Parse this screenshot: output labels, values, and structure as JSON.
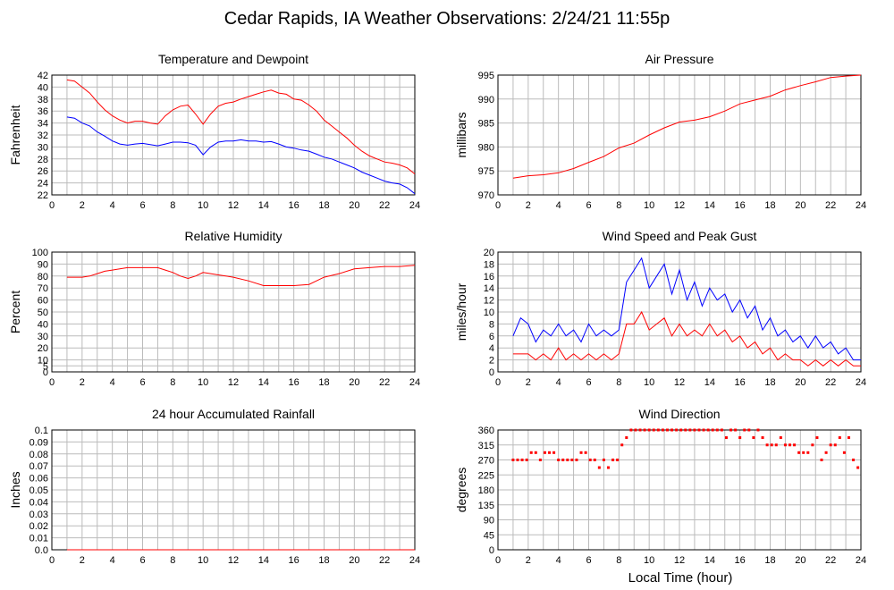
{
  "page_title": "Cedar Rapids, IA Weather Observations: 2/24/21 11:55p",
  "xaxis_label": "Local Time (hour)",
  "x_ticks": [
    "0",
    "2",
    "4",
    "6",
    "8",
    "10",
    "12",
    "14",
    "16",
    "18",
    "20",
    "22",
    "24"
  ],
  "colors": {
    "red": "#ff0000",
    "blue": "#0000ff",
    "grid": "#bbbbbb",
    "frame": "#000000"
  },
  "chart_data": [
    {
      "id": "temp",
      "type": "line",
      "title": "Temperature and Dewpoint",
      "xlabel": "",
      "ylabel": "Fahrenheit",
      "xlim": [
        0,
        24
      ],
      "ylim": [
        22,
        42
      ],
      "yticks": [
        "22",
        "24",
        "26",
        "28",
        "30",
        "32",
        "34",
        "36",
        "38",
        "40",
        "42"
      ],
      "grid": true,
      "series": [
        {
          "color": "#ff0000",
          "x": [
            1.0,
            1.5,
            2.0,
            2.5,
            3.0,
            3.5,
            4.0,
            4.5,
            5.0,
            5.5,
            6.0,
            6.5,
            7.0,
            7.5,
            8.0,
            8.5,
            9.0,
            9.5,
            10.0,
            10.5,
            11.0,
            11.5,
            12.0,
            12.5,
            13.0,
            13.5,
            14.0,
            14.5,
            15.0,
            15.5,
            16.0,
            16.5,
            17.0,
            17.5,
            18.0,
            18.5,
            19.0,
            19.5,
            20.0,
            20.5,
            21.0,
            21.5,
            22.0,
            22.5,
            23.0,
            23.5,
            24.0
          ],
          "y": [
            41.2,
            41.0,
            40.0,
            39.0,
            37.5,
            36.2,
            35.2,
            34.5,
            34.0,
            34.3,
            34.3,
            34.0,
            33.8,
            35.2,
            36.2,
            36.8,
            37.0,
            35.5,
            33.8,
            35.5,
            36.8,
            37.3,
            37.5,
            38.0,
            38.4,
            38.8,
            39.2,
            39.5,
            39.0,
            38.8,
            38.0,
            37.8,
            37.0,
            36.0,
            34.5,
            33.5,
            32.5,
            31.5,
            30.3,
            29.3,
            28.5,
            28.0,
            27.5,
            27.3,
            27.0,
            26.5,
            25.5
          ]
        },
        {
          "color": "#0000ff",
          "x": [
            1.0,
            1.5,
            2.0,
            2.5,
            3.0,
            3.5,
            4.0,
            4.5,
            5.0,
            5.5,
            6.0,
            6.5,
            7.0,
            7.5,
            8.0,
            8.5,
            9.0,
            9.5,
            10.0,
            10.5,
            11.0,
            11.5,
            12.0,
            12.5,
            13.0,
            13.5,
            14.0,
            14.5,
            15.0,
            15.5,
            16.0,
            16.5,
            17.0,
            17.5,
            18.0,
            18.5,
            19.0,
            19.5,
            20.0,
            20.5,
            21.0,
            21.5,
            22.0,
            22.5,
            23.0,
            23.5,
            24.0
          ],
          "y": [
            35.0,
            34.8,
            34.0,
            33.5,
            32.5,
            31.8,
            31.0,
            30.5,
            30.3,
            30.5,
            30.6,
            30.4,
            30.2,
            30.5,
            30.8,
            30.8,
            30.7,
            30.3,
            28.7,
            30.0,
            30.8,
            31.0,
            31.0,
            31.2,
            31.0,
            31.0,
            30.8,
            30.9,
            30.5,
            30.0,
            29.8,
            29.5,
            29.3,
            28.8,
            28.3,
            28.0,
            27.5,
            27.0,
            26.5,
            25.8,
            25.3,
            24.8,
            24.3,
            24.0,
            23.8,
            23.2,
            22.2
          ]
        }
      ]
    },
    {
      "id": "pressure",
      "type": "line",
      "title": "Air Pressure",
      "xlabel": "",
      "ylabel": "millibars",
      "xlim": [
        0,
        24
      ],
      "ylim": [
        970,
        995
      ],
      "yticks": [
        "970",
        "975",
        "980",
        "985",
        "990",
        "995"
      ],
      "grid": true,
      "series": [
        {
          "color": "#ff0000",
          "x": [
            1.0,
            2.0,
            3.0,
            4.0,
            5.0,
            6.0,
            7.0,
            8.0,
            9.0,
            10.0,
            11.0,
            12.0,
            13.0,
            14.0,
            15.0,
            16.0,
            17.0,
            18.0,
            19.0,
            20.0,
            21.0,
            22.0,
            23.0,
            24.0
          ],
          "y": [
            973.5,
            974.0,
            974.2,
            974.6,
            975.5,
            976.8,
            978.0,
            979.8,
            980.8,
            982.5,
            984.0,
            985.2,
            985.6,
            986.3,
            987.5,
            989.0,
            989.8,
            990.6,
            991.9,
            992.8,
            993.6,
            994.5,
            994.8,
            995.0
          ]
        }
      ]
    },
    {
      "id": "rh",
      "type": "line",
      "title": "Relative Humidity",
      "xlabel": "",
      "ylabel": "Percent",
      "xlim": [
        0,
        24
      ],
      "ylim": [
        0,
        100
      ],
      "yticks": [
        "0",
        "5",
        "10",
        "20",
        "30",
        "40",
        "50",
        "60",
        "70",
        "80",
        "90",
        "100"
      ],
      "grid": true,
      "series": [
        {
          "color": "#ff0000",
          "x": [
            1.0,
            2.0,
            2.5,
            3.0,
            3.5,
            4.0,
            5.0,
            6.0,
            7.0,
            7.5,
            8.0,
            8.5,
            9.0,
            9.5,
            10.0,
            10.5,
            11.0,
            12.0,
            13.0,
            14.0,
            14.5,
            15.0,
            16.0,
            17.0,
            17.5,
            18.0,
            19.0,
            20.0,
            21.0,
            22.0,
            23.0,
            24.0
          ],
          "y": [
            79,
            79,
            80,
            82,
            84,
            85,
            87,
            87,
            87,
            85,
            83,
            80,
            78,
            80,
            83,
            82,
            81,
            79,
            76,
            72,
            72,
            72,
            72,
            73,
            76,
            79,
            82,
            86,
            87,
            88,
            88,
            89
          ]
        }
      ]
    },
    {
      "id": "wind",
      "type": "line",
      "title": "Wind Speed and Peak Gust",
      "xlabel": "",
      "ylabel": "miles/hour",
      "xlim": [
        0,
        24
      ],
      "ylim": [
        0,
        20
      ],
      "yticks": [
        "0",
        "2",
        "4",
        "6",
        "8",
        "10",
        "12",
        "14",
        "16",
        "18",
        "20"
      ],
      "grid": true,
      "series": [
        {
          "color": "#0000ff",
          "x": [
            1.0,
            1.5,
            2.0,
            2.5,
            3.0,
            3.5,
            4.0,
            4.5,
            5.0,
            5.5,
            6.0,
            6.5,
            7.0,
            7.5,
            8.0,
            8.5,
            9.0,
            9.5,
            10.0,
            10.5,
            11.0,
            11.5,
            12.0,
            12.5,
            13.0,
            13.5,
            14.0,
            14.5,
            15.0,
            15.5,
            16.0,
            16.5,
            17.0,
            17.5,
            18.0,
            18.5,
            19.0,
            19.5,
            20.0,
            20.5,
            21.0,
            21.5,
            22.0,
            22.5,
            23.0,
            23.5,
            24.0
          ],
          "y": [
            6,
            9,
            8,
            5,
            7,
            6,
            8,
            6,
            7,
            5,
            8,
            6,
            7,
            6,
            7,
            15,
            17,
            19,
            14,
            16,
            18,
            13,
            17,
            12,
            15,
            11,
            14,
            12,
            13,
            10,
            12,
            9,
            11,
            7,
            9,
            6,
            7,
            5,
            6,
            4,
            6,
            4,
            5,
            3,
            4,
            2,
            2
          ]
        },
        {
          "color": "#ff0000",
          "x": [
            1.0,
            1.5,
            2.0,
            2.5,
            3.0,
            3.5,
            4.0,
            4.5,
            5.0,
            5.5,
            6.0,
            6.5,
            7.0,
            7.5,
            8.0,
            8.5,
            9.0,
            9.5,
            10.0,
            10.5,
            11.0,
            11.5,
            12.0,
            12.5,
            13.0,
            13.5,
            14.0,
            14.5,
            15.0,
            15.5,
            16.0,
            16.5,
            17.0,
            17.5,
            18.0,
            18.5,
            19.0,
            19.5,
            20.0,
            20.5,
            21.0,
            21.5,
            22.0,
            22.5,
            23.0,
            23.5,
            24.0
          ],
          "y": [
            3,
            3,
            3,
            2,
            3,
            2,
            4,
            2,
            3,
            2,
            3,
            2,
            3,
            2,
            3,
            8,
            8,
            10,
            7,
            8,
            9,
            6,
            8,
            6,
            7,
            6,
            8,
            6,
            7,
            5,
            6,
            4,
            5,
            3,
            4,
            2,
            3,
            2,
            2,
            1,
            2,
            1,
            2,
            1,
            2,
            1,
            1
          ]
        }
      ]
    },
    {
      "id": "rain",
      "type": "line",
      "title": "24 hour Accumulated Rainfall",
      "xlabel": "",
      "ylabel": "Inches",
      "xlim": [
        0,
        24
      ],
      "ylim": [
        0,
        0.1
      ],
      "yticks": [
        "0.0",
        "0.01",
        "0.02",
        "0.03",
        "0.04",
        "0.05",
        "0.06",
        "0.07",
        "0.08",
        "0.09",
        "0.1"
      ],
      "grid": true,
      "series": [
        {
          "color": "#ff0000",
          "x": [
            1.0,
            24.0
          ],
          "y": [
            0.0,
            0.0
          ]
        }
      ]
    },
    {
      "id": "dir",
      "type": "scatter",
      "title": "Wind Direction",
      "xlabel": "Local Time (hour)",
      "ylabel": "degrees",
      "xlim": [
        0,
        24
      ],
      "ylim": [
        0,
        360
      ],
      "yticks": [
        "0",
        "45",
        "90",
        "135",
        "180",
        "225",
        "270",
        "315",
        "360"
      ],
      "grid": true,
      "series": [
        {
          "color": "#ff0000",
          "x": [
            1.0,
            1.3,
            1.6,
            1.9,
            2.2,
            2.5,
            2.8,
            3.1,
            3.4,
            3.7,
            4.0,
            4.3,
            4.6,
            4.9,
            5.2,
            5.5,
            5.8,
            6.1,
            6.4,
            6.7,
            7.0,
            7.3,
            7.6,
            7.9,
            8.2,
            8.5,
            8.8,
            9.1,
            9.4,
            9.7,
            10.0,
            10.3,
            10.6,
            10.9,
            11.2,
            11.5,
            11.8,
            12.1,
            12.4,
            12.7,
            13.0,
            13.3,
            13.6,
            13.9,
            14.2,
            14.5,
            14.8,
            15.1,
            15.4,
            15.7,
            16.0,
            16.3,
            16.6,
            16.9,
            17.2,
            17.5,
            17.8,
            18.1,
            18.4,
            18.7,
            19.0,
            19.3,
            19.6,
            19.9,
            20.2,
            20.5,
            20.8,
            21.1,
            21.4,
            21.7,
            22.0,
            22.3,
            22.6,
            22.9,
            23.2,
            23.5,
            23.8
          ],
          "y": [
            270,
            270,
            270,
            270,
            292,
            292,
            270,
            292,
            292,
            292,
            270,
            270,
            270,
            270,
            270,
            292,
            292,
            270,
            270,
            247,
            270,
            247,
            270,
            270,
            315,
            337,
            360,
            360,
            360,
            360,
            360,
            360,
            360,
            360,
            360,
            360,
            360,
            360,
            360,
            360,
            360,
            360,
            360,
            360,
            360,
            360,
            360,
            337,
            360,
            360,
            337,
            360,
            360,
            337,
            360,
            337,
            315,
            315,
            315,
            337,
            315,
            315,
            315,
            292,
            292,
            292,
            315,
            337,
            270,
            292,
            315,
            315,
            337,
            292,
            337,
            270,
            247
          ]
        }
      ]
    }
  ]
}
